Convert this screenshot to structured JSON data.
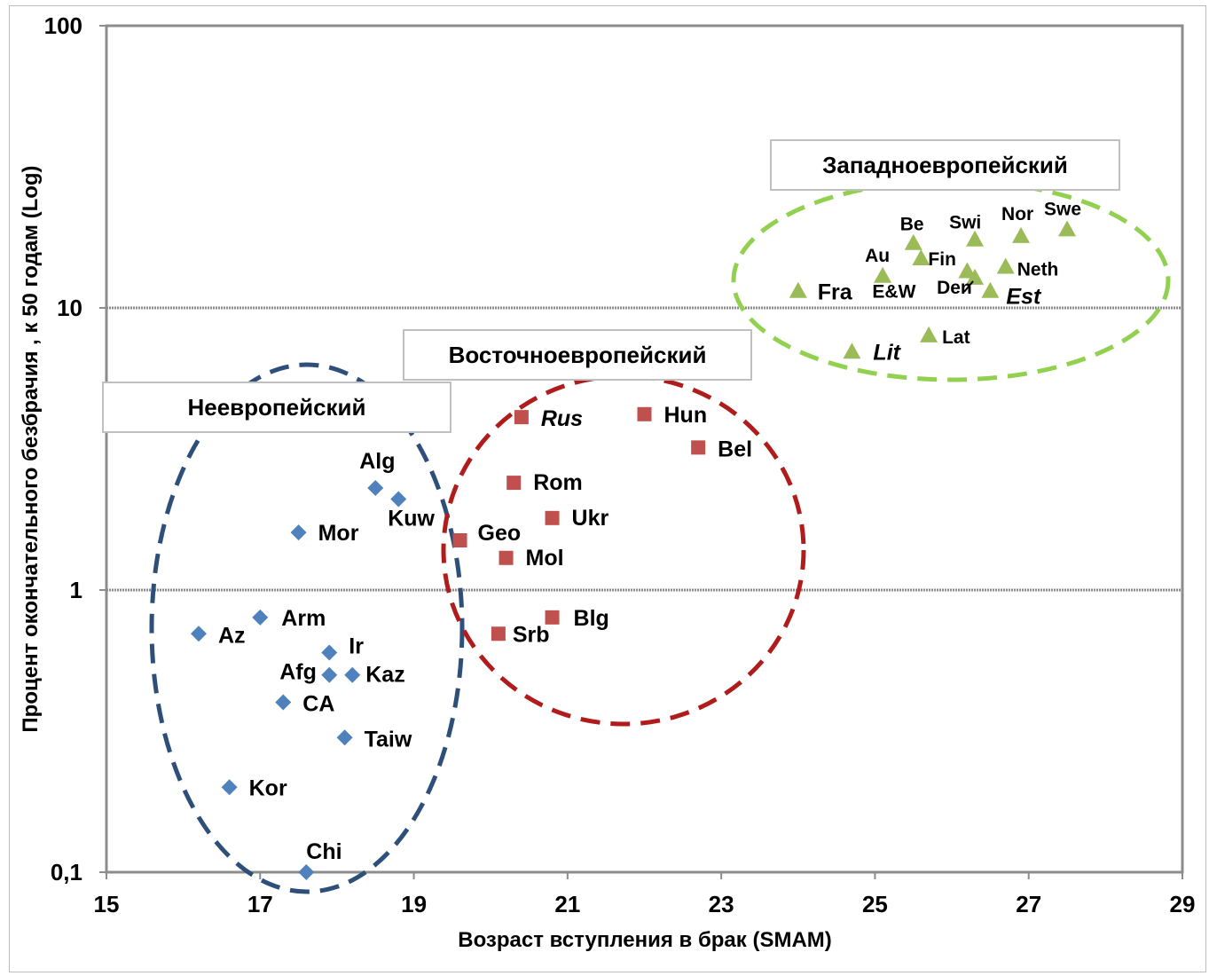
{
  "chart_data": {
    "type": "scatter",
    "xlabel": "Возраст вступления в брак (SMAM)",
    "ylabel": "Процент окончательного безбрачия , к 50 годам (Log)",
    "xlim": [
      15,
      29
    ],
    "ylim": [
      0.1,
      100
    ],
    "yscale": "log",
    "x_ticks": [
      "15",
      "17",
      "19",
      "21",
      "23",
      "25",
      "27",
      "29"
    ],
    "y_ticks": [
      "0,1",
      "1",
      "10",
      "100"
    ],
    "grid": "horizontal",
    "groups": [
      {
        "title": "Неевропейский",
        "color": "#4f81bd",
        "marker": "diamond",
        "ellipse_color": "#2e4f7a"
      },
      {
        "title": "Восточноевропейский",
        "color": "#c0504d",
        "marker": "square",
        "ellipse_color": "#b01c1c"
      },
      {
        "title": "Западноевропейский",
        "color": "#9bbb59",
        "marker": "triangle",
        "ellipse_color": "#92d050"
      }
    ],
    "series": [
      {
        "marker": "diamond",
        "points": [
          {
            "label": "Alg",
            "x": 18.5,
            "y": 2.3
          },
          {
            "label": "Kuw",
            "x": 18.8,
            "y": 2.1
          },
          {
            "label": "Mor",
            "x": 17.5,
            "y": 1.6
          },
          {
            "label": "Az",
            "x": 16.2,
            "y": 0.7
          },
          {
            "label": "Arm",
            "x": 17.0,
            "y": 0.8
          },
          {
            "label": "Ir",
            "x": 17.9,
            "y": 0.6
          },
          {
            "label": "Afg",
            "x": 17.9,
            "y": 0.5
          },
          {
            "label": "Kaz",
            "x": 18.2,
            "y": 0.5
          },
          {
            "label": "CA",
            "x": 17.3,
            "y": 0.4
          },
          {
            "label": "Taiw",
            "x": 18.1,
            "y": 0.3
          },
          {
            "label": "Kor",
            "x": 16.6,
            "y": 0.2
          },
          {
            "label": "Chi",
            "x": 17.6,
            "y": 0.1
          }
        ]
      },
      {
        "marker": "square",
        "points": [
          {
            "label": "Rus",
            "x": 20.4,
            "y": 4.1
          },
          {
            "label": "Hun",
            "x": 22.0,
            "y": 4.2
          },
          {
            "label": "Bel",
            "x": 22.7,
            "y": 3.2
          },
          {
            "label": "Rom",
            "x": 20.3,
            "y": 2.4
          },
          {
            "label": "Ukr",
            "x": 20.8,
            "y": 1.8
          },
          {
            "label": "Geo",
            "x": 19.6,
            "y": 1.5
          },
          {
            "label": "Mol",
            "x": 20.2,
            "y": 1.3
          },
          {
            "label": "Blg",
            "x": 20.8,
            "y": 0.8
          },
          {
            "label": "Srb",
            "x": 20.1,
            "y": 0.7
          }
        ]
      },
      {
        "marker": "triangle",
        "points": [
          {
            "label": "Be",
            "x": 25.5,
            "y": 17
          },
          {
            "label": "Swi",
            "x": 26.3,
            "y": 17.5
          },
          {
            "label": "Nor",
            "x": 26.9,
            "y": 18
          },
          {
            "label": "Swe",
            "x": 27.5,
            "y": 19
          },
          {
            "label": "Au",
            "x": 25.1,
            "y": 13
          },
          {
            "label": "Fin",
            "x": 25.6,
            "y": 15
          },
          {
            "label": "Neth",
            "x": 26.7,
            "y": 14
          },
          {
            "label": "Fra",
            "x": 24.0,
            "y": 11.5
          },
          {
            "label": "E&W",
            "x": 26.2,
            "y": 13.5
          },
          {
            "label": "Den",
            "x": 26.3,
            "y": 12.8
          },
          {
            "label": "Est",
            "x": 26.5,
            "y": 11.5
          },
          {
            "label": "Lat",
            "x": 25.7,
            "y": 8.0
          },
          {
            "label": "Lit",
            "x": 24.7,
            "y": 7.0
          }
        ]
      }
    ]
  }
}
